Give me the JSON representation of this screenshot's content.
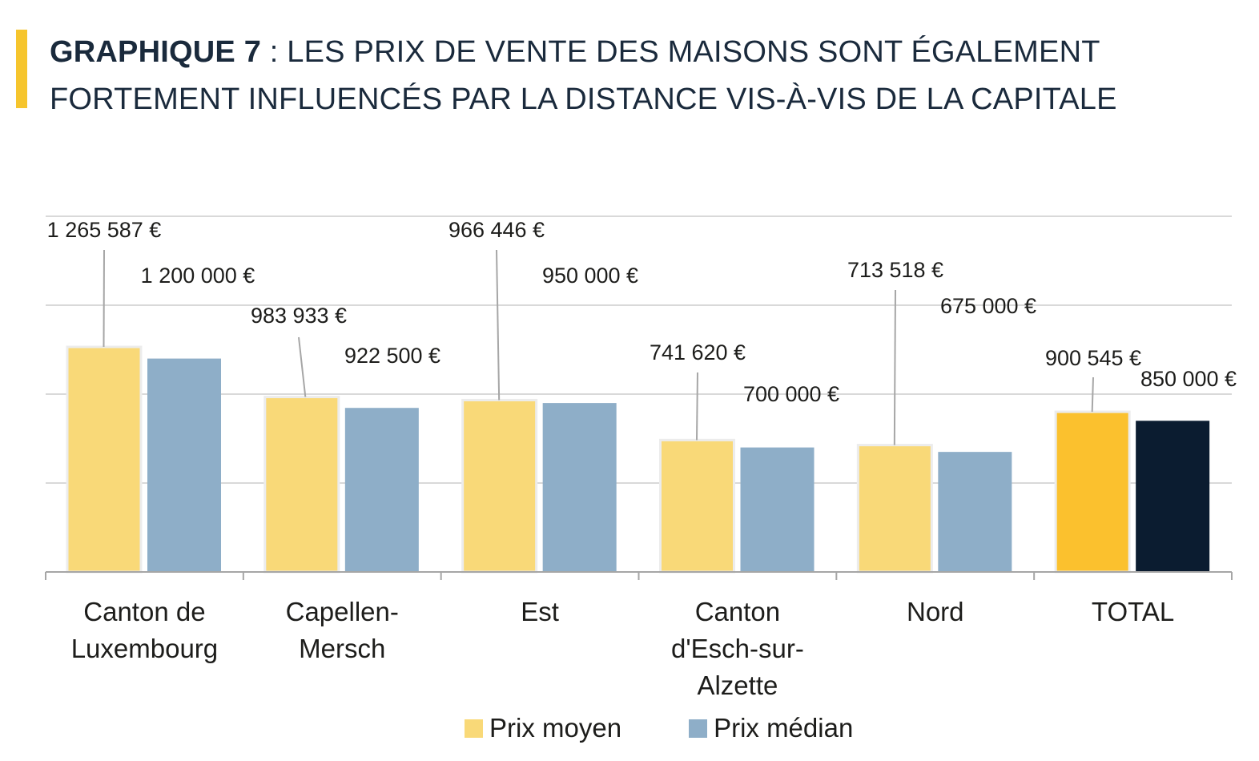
{
  "header": {
    "title_strong": "GRAPHIQUE 7",
    "title_rest": " : LES PRIX DE VENTE DES MAISONS SONT ÉGALEMENT FORTEMENT INFLUENCÉS PAR LA DISTANCE VIS-À-VIS DE LA CAPITALE",
    "accent_color": "#F6C52D"
  },
  "chart_data": {
    "type": "bar",
    "categories": [
      [
        "Canton de",
        "Luxembourg"
      ],
      [
        "Capellen-",
        "Mersch"
      ],
      [
        "Est"
      ],
      [
        "Canton",
        "d'Esch-sur-",
        "Alzette"
      ],
      [
        "Nord"
      ],
      [
        "TOTAL"
      ]
    ],
    "series": [
      {
        "name": "Prix moyen",
        "color": "#F9D978",
        "values": [
          1265587,
          983933,
          966446,
          741620,
          713518,
          900545
        ],
        "labels": [
          "1 265 587 €",
          "983 933 €",
          "966 446 €",
          "741 620 €",
          "713 518 €",
          "900 545 €"
        ]
      },
      {
        "name": "Prix médian",
        "color": "#8EAEC8",
        "values": [
          1200000,
          922500,
          950000,
          700000,
          675000,
          850000
        ],
        "labels": [
          "1 200 000 €",
          "922 500 €",
          "950 000 €",
          "700 000 €",
          "675 000 €",
          "850 000 €"
        ]
      }
    ],
    "highlight": {
      "category_index": 5,
      "colors": [
        "#FBC12E",
        "#0B1C30"
      ]
    },
    "ylim": [
      0,
      2000000
    ],
    "grid": true,
    "gridline_values": [
      500000,
      1000000,
      1500000,
      2000000
    ],
    "legend_position": "bottom",
    "title": "",
    "xlabel": "",
    "ylabel": ""
  },
  "legend": {
    "items": [
      {
        "label": "Prix moyen",
        "color": "#F9D978"
      },
      {
        "label": "Prix médian",
        "color": "#8EAEC8"
      }
    ]
  }
}
